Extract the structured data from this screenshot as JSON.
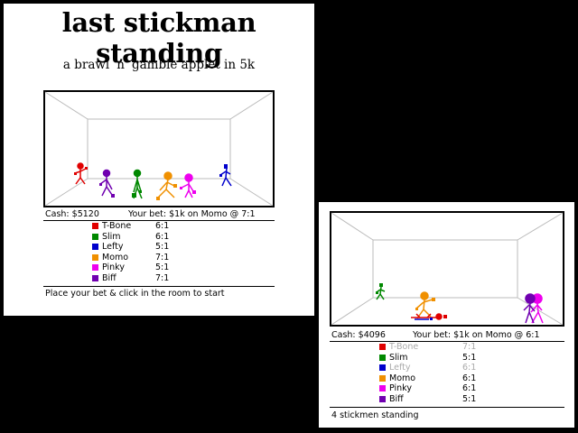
{
  "title": "last stickman standing",
  "subtitle": "a brawl 'n' gamble applet in 5k",
  "colors": {
    "tbone": "#e00000",
    "slim": "#008800",
    "lefty": "#0000cc",
    "momo": "#f09000",
    "pinky": "#ee00ee",
    "biff": "#7000b0"
  },
  "game1": {
    "cash": "Cash: $5120",
    "bet": "Your bet: $1k on Momo @ 7:1",
    "fighters": [
      {
        "name": "T-Bone",
        "odds": "6:1",
        "color": "#e00000",
        "dim": false
      },
      {
        "name": "Slim",
        "odds": "6:1",
        "color": "#008800",
        "dim": false
      },
      {
        "name": "Lefty",
        "odds": "5:1",
        "color": "#0000cc",
        "dim": false
      },
      {
        "name": "Momo",
        "odds": "7:1",
        "color": "#f09000",
        "dim": false
      },
      {
        "name": "Pinky",
        "odds": "5:1",
        "color": "#ee00ee",
        "dim": false
      },
      {
        "name": "Biff",
        "odds": "7:1",
        "color": "#7000b0",
        "dim": false
      }
    ],
    "message": "Place your bet & click in the room to start"
  },
  "game2": {
    "cash": "Cash: $4096",
    "bet": "Your bet: $1k on Momo @ 6:1",
    "fighters": [
      {
        "name": "T-Bone",
        "odds": "7:1",
        "color": "#e00000",
        "dim": true
      },
      {
        "name": "Slim",
        "odds": "5:1",
        "color": "#008800",
        "dim": false
      },
      {
        "name": "Lefty",
        "odds": "6:1",
        "color": "#0000cc",
        "dim": true
      },
      {
        "name": "Momo",
        "odds": "6:1",
        "color": "#f09000",
        "dim": false
      },
      {
        "name": "Pinky",
        "odds": "6:1",
        "color": "#ee00ee",
        "dim": false
      },
      {
        "name": "Biff",
        "odds": "5:1",
        "color": "#7000b0",
        "dim": false
      }
    ],
    "message": "4 stickmen standing"
  }
}
